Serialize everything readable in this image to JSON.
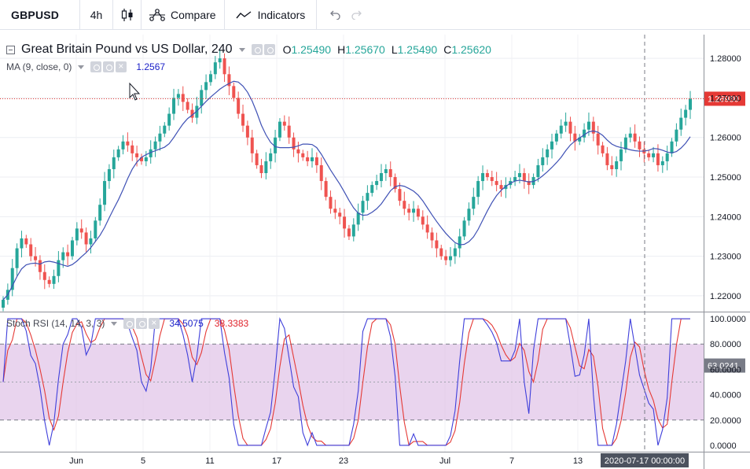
{
  "toolbar": {
    "symbol": "GBPUSD",
    "interval": "4h",
    "compare_label": "Compare",
    "indicators_label": "Indicators",
    "icons": {
      "chart_type": "candlestick-icon",
      "compare": "compare-icon",
      "indicators": "indicators-wave-icon",
      "undo": "undo-icon",
      "redo": "redo-icon"
    }
  },
  "legend": {
    "title": "Great Britain Pound vs US Dollar, 240",
    "open_label": "O",
    "open": "1.25490",
    "high_label": "H",
    "high": "1.25670",
    "low_label": "L",
    "low": "1.25490",
    "close_label": "C",
    "close": "1.25620"
  },
  "ma_legend": {
    "label": "MA (9, close, 0)",
    "value": "1.2567"
  },
  "rsi_legend": {
    "label": "Stoch RSI (14, 14, 3, 3)",
    "k_value": "34.5075",
    "d_value": "38.3383"
  },
  "price_axis": {
    "ticks": [
      "1.28000",
      "1.27000",
      "1.26000",
      "1.25000",
      "1.24000",
      "1.23000",
      "1.22000"
    ],
    "current_price": "1.26980"
  },
  "rsi_axis": {
    "ticks": [
      "100.0000",
      "80.0000",
      "60.0000",
      "40.0000",
      "20.0000",
      "0.0000"
    ],
    "current_value": "63.0241"
  },
  "time_axis": {
    "labels": [
      "Jun",
      "5",
      "11",
      "17",
      "23",
      "Jul",
      "7",
      "13"
    ],
    "crosshair_label": "2020-07-17 00:00:00"
  },
  "colors": {
    "up": "#26a69a",
    "down": "#ef5350",
    "ma": "#3f51b5",
    "k_line": "#3f3fdb",
    "d_line": "#e53935",
    "rsi_band": "#e1c6e8",
    "price_line": "#e53935"
  },
  "chart_data": {
    "type": "candlestick",
    "symbol": "GBPUSD",
    "timeframe": "240",
    "price_range": [
      1.216,
      1.286
    ],
    "rsi_range": [
      -5,
      105
    ],
    "closes": [
      1.219,
      1.2215,
      1.227,
      1.232,
      1.2345,
      1.233,
      1.23,
      1.229,
      1.226,
      1.224,
      1.223,
      1.225,
      1.229,
      1.231,
      1.23,
      1.234,
      1.237,
      1.236,
      1.233,
      1.2345,
      1.239,
      1.243,
      1.249,
      1.252,
      1.255,
      1.257,
      1.259,
      1.258,
      1.256,
      1.255,
      1.254,
      1.255,
      1.257,
      1.259,
      1.261,
      1.263,
      1.266,
      1.27,
      1.271,
      1.269,
      1.267,
      1.265,
      1.268,
      1.272,
      1.274,
      1.276,
      1.279,
      1.28,
      1.276,
      1.273,
      1.27,
      1.266,
      1.263,
      1.26,
      1.256,
      1.253,
      1.251,
      1.254,
      1.256,
      1.26,
      1.264,
      1.263,
      1.26,
      1.257,
      1.256,
      1.255,
      1.254,
      1.255,
      1.253,
      1.249,
      1.245,
      1.242,
      1.241,
      1.24,
      1.237,
      1.235,
      1.238,
      1.241,
      1.244,
      1.246,
      1.248,
      1.249,
      1.251,
      1.252,
      1.25,
      1.247,
      1.244,
      1.242,
      1.241,
      1.242,
      1.24,
      1.238,
      1.236,
      1.234,
      1.232,
      1.23,
      1.229,
      1.23,
      1.232,
      1.235,
      1.239,
      1.242,
      1.245,
      1.249,
      1.251,
      1.25,
      1.249,
      1.248,
      1.247,
      1.248,
      1.249,
      1.25,
      1.251,
      1.249,
      1.248,
      1.25,
      1.253,
      1.255,
      1.257,
      1.259,
      1.261,
      1.263,
      1.264,
      1.261,
      1.259,
      1.26,
      1.262,
      1.264,
      1.261,
      1.258,
      1.256,
      1.253,
      1.252,
      1.254,
      1.257,
      1.26,
      1.261,
      1.259,
      1.257,
      1.256,
      1.255,
      1.256,
      1.253,
      1.254,
      1.256,
      1.259,
      1.262,
      1.265,
      1.267,
      1.2698
    ]
  }
}
